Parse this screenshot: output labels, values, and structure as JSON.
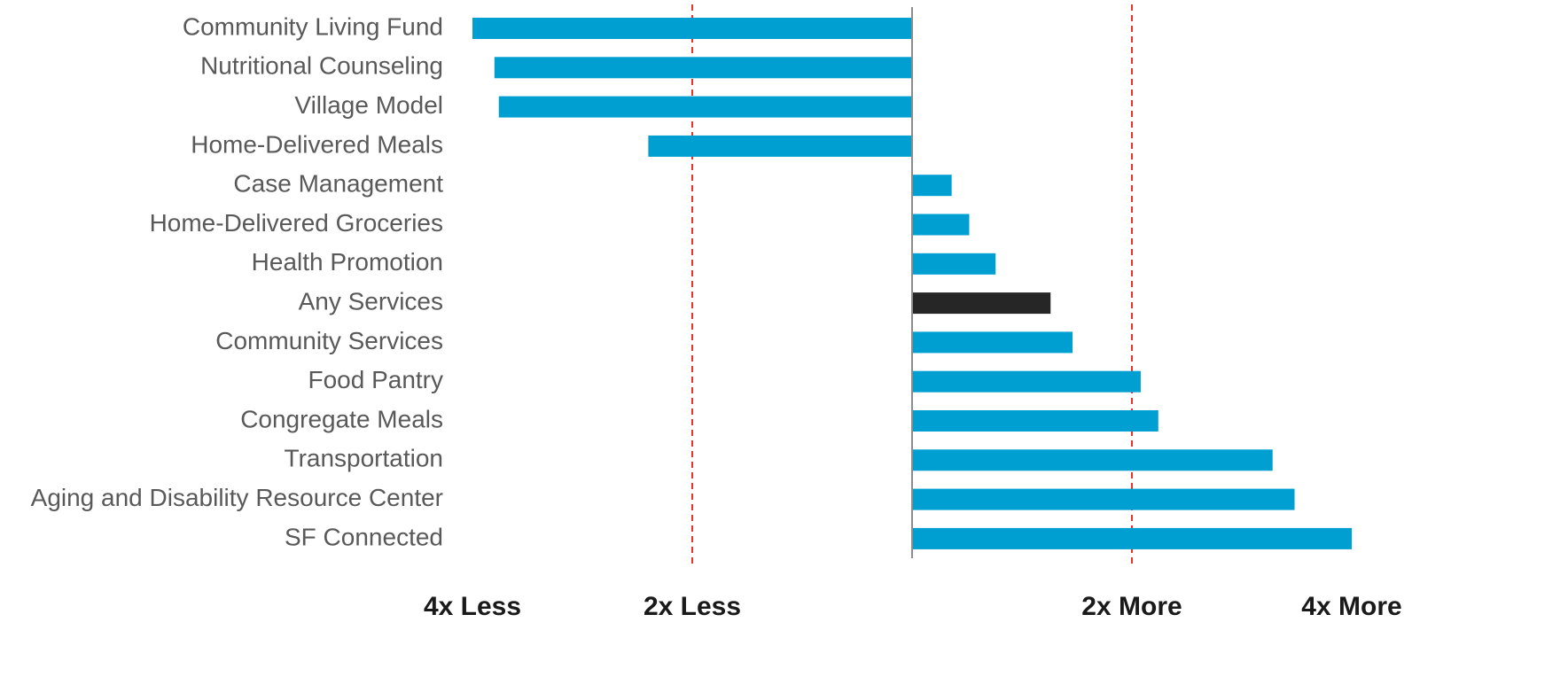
{
  "chart_data": {
    "type": "barh",
    "categories": [
      "Community Living Fund",
      "Nutritional Counseling",
      "Village Model",
      "Home-Delivered Meals",
      "Case Management",
      "Home-Delivered Groceries",
      "Health Promotion",
      "Any Services",
      "Community Services",
      "Food Pantry",
      "Congregate Meals",
      "Transportation",
      "Aging and Disability Resource Center",
      "SF Connected"
    ],
    "values": [
      -2.0,
      -1.9,
      -1.88,
      -1.2,
      0.18,
      0.26,
      0.38,
      0.63,
      0.73,
      1.04,
      1.12,
      1.64,
      1.74,
      2.0
    ],
    "colors": [
      "#009fd1",
      "#009fd1",
      "#009fd1",
      "#009fd1",
      "#009fd1",
      "#009fd1",
      "#009fd1",
      "#262626",
      "#009fd1",
      "#009fd1",
      "#009fd1",
      "#009fd1",
      "#009fd1",
      "#009fd1"
    ],
    "xlim": [
      -2,
      2
    ],
    "xticks": [
      {
        "value": -2,
        "label": "4x Less"
      },
      {
        "value": -1,
        "label": "2x Less"
      },
      {
        "value": 1,
        "label": "2x More"
      },
      {
        "value": 2,
        "label": "4x More"
      }
    ],
    "reference_lines": [
      -1,
      1
    ],
    "reference_color": "#e8352a"
  }
}
